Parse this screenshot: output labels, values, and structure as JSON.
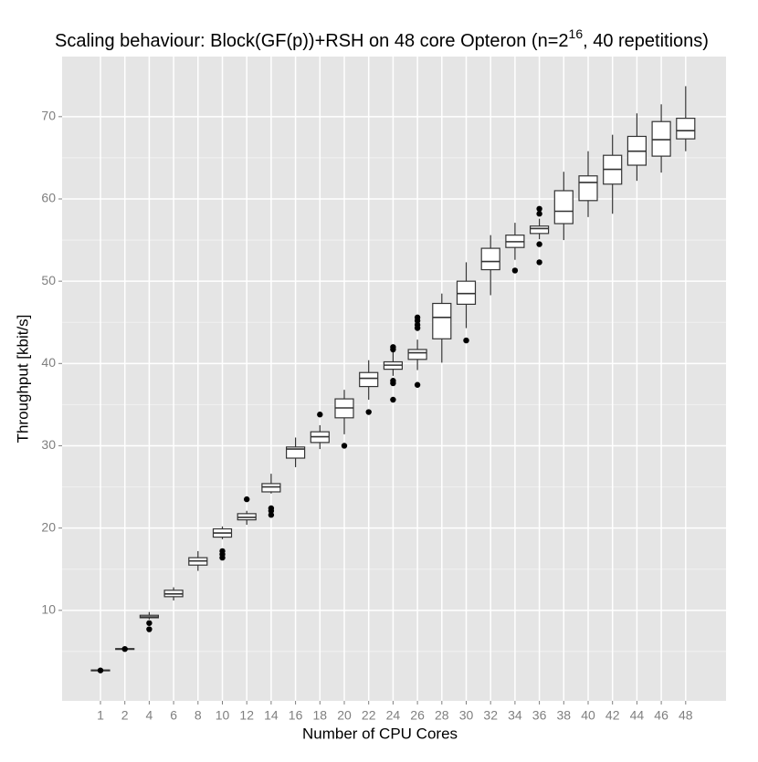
{
  "chart_data": {
    "type": "boxplot",
    "title": [
      "Scaling behaviour: Block(GF(p))+RSH on 48 core Opteron (n=2",
      "16",
      ", 40 repetitions)"
    ],
    "x_label": "Number of CPU Cores",
    "y_label": "Throughput [kbit/s]",
    "categories": [
      1,
      2,
      4,
      6,
      8,
      10,
      12,
      14,
      16,
      18,
      20,
      22,
      24,
      26,
      28,
      30,
      32,
      34,
      36,
      38,
      40,
      42,
      44,
      46,
      48
    ],
    "whisker_low": [
      2.6,
      5.2,
      8.9,
      11.2,
      14.8,
      18.65,
      20.4,
      24.2,
      27.4,
      29.6,
      31.4,
      35.6,
      38.5,
      39.2,
      40.1,
      44.3,
      48.3,
      52.6,
      55.1,
      55.0,
      57.8,
      58.2,
      62.2,
      63.2,
      65.8
    ],
    "q1": [
      2.65,
      5.25,
      9.1,
      11.66,
      15.5,
      18.9,
      21.0,
      24.4,
      28.5,
      30.4,
      33.4,
      37.2,
      39.3,
      40.5,
      43.0,
      47.2,
      51.4,
      54.1,
      55.8,
      57.0,
      59.8,
      61.8,
      64.1,
      65.2,
      67.3
    ],
    "median": [
      2.7,
      5.3,
      9.2,
      12.0,
      16.0,
      19.4,
      21.3,
      25.0,
      29.6,
      31.1,
      34.6,
      38.2,
      39.8,
      41.3,
      45.6,
      48.5,
      52.4,
      54.8,
      56.4,
      58.5,
      62.0,
      63.6,
      65.8,
      67.2,
      68.3
    ],
    "q3": [
      2.75,
      5.35,
      9.4,
      12.44,
      16.4,
      19.9,
      21.75,
      25.4,
      29.85,
      31.7,
      35.7,
      38.9,
      40.2,
      41.7,
      47.3,
      50.0,
      54.0,
      55.6,
      56.7,
      61.0,
      62.8,
      65.3,
      67.6,
      69.4,
      69.8
    ],
    "whisker_high": [
      2.8,
      5.4,
      9.8,
      12.8,
      17.2,
      20.2,
      22.1,
      26.6,
      31.0,
      32.5,
      36.8,
      40.4,
      41.5,
      42.9,
      48.5,
      52.3,
      55.6,
      57.1,
      57.6,
      63.3,
      65.8,
      67.8,
      70.4,
      71.5,
      73.7
    ],
    "outliers": [
      [
        2.7
      ],
      [
        5.3
      ],
      [
        8.45,
        7.7
      ],
      [],
      [],
      [
        17.2,
        16.8,
        16.4
      ],
      [
        23.5
      ],
      [
        22.4,
        22.1,
        21.6
      ],
      [],
      [
        33.8
      ],
      [
        30.0
      ],
      [
        34.1
      ],
      [
        42.0,
        41.7,
        37.9,
        37.6,
        35.6
      ],
      [
        45.6,
        45.2,
        44.7,
        44.3,
        37.4
      ],
      [],
      [
        42.8
      ],
      [],
      [
        51.3
      ],
      [
        58.8,
        58.2,
        54.5,
        52.3
      ],
      [],
      [],
      [],
      [],
      [],
      []
    ],
    "box_fill": "#ffffff",
    "box_stroke": "#333333",
    "point_color": "#000000",
    "ylim": [
      -1,
      77.3
    ],
    "yticks": [
      10,
      20,
      30,
      40,
      50,
      60,
      70
    ],
    "grid": true
  }
}
